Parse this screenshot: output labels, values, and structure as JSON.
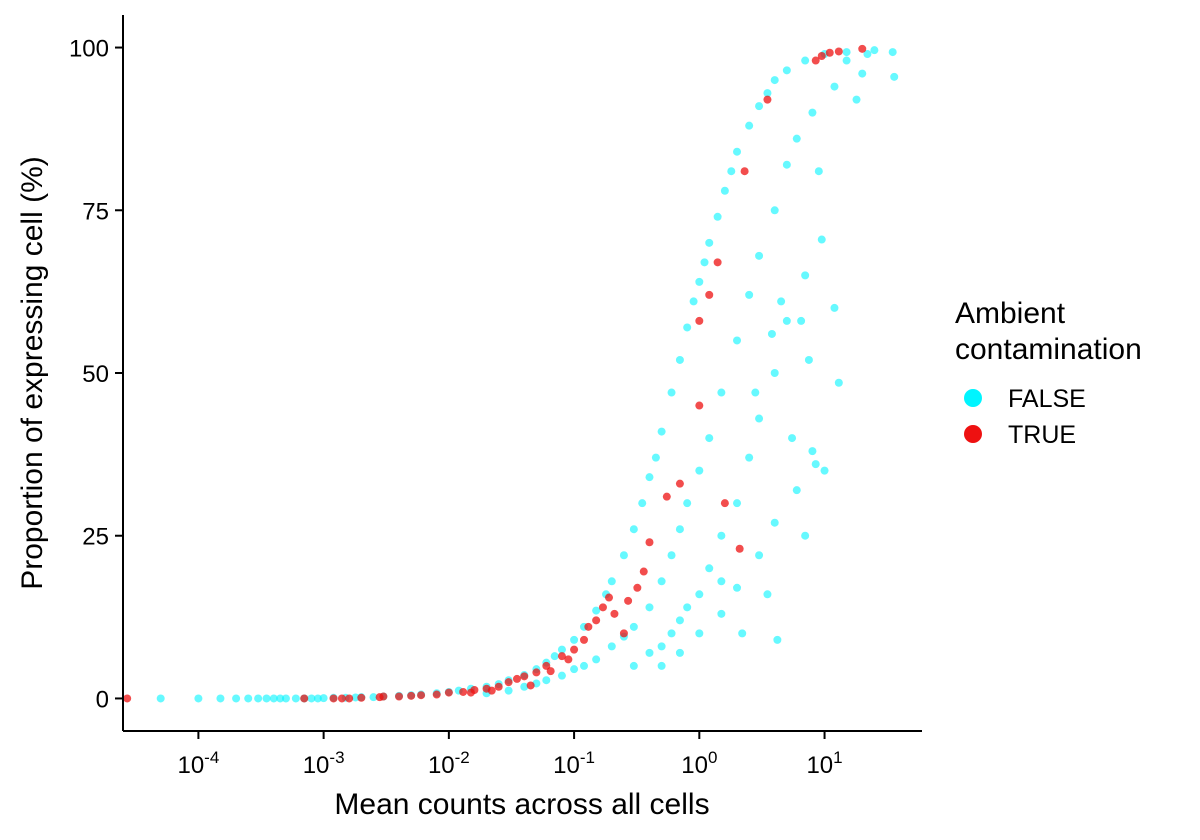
{
  "chart_data": {
    "type": "scatter",
    "title": "",
    "xlabel": "Mean counts across all cells",
    "ylabel": "Proportion of expressing cell (%)",
    "x_scale": "log10",
    "xlim": [
      2.5e-05,
      60
    ],
    "ylim": [
      -5,
      105
    ],
    "x_ticks": [
      {
        "value": 0.0001,
        "base": "10",
        "exp": "-4"
      },
      {
        "value": 0.001,
        "base": "10",
        "exp": "-3"
      },
      {
        "value": 0.01,
        "base": "10",
        "exp": "-2"
      },
      {
        "value": 0.1,
        "base": "10",
        "exp": "-1"
      },
      {
        "value": 1,
        "base": "10",
        "exp": "0"
      },
      {
        "value": 10,
        "base": "10",
        "exp": "1"
      }
    ],
    "y_ticks": [
      {
        "value": 0,
        "label": "0"
      },
      {
        "value": 25,
        "label": "25"
      },
      {
        "value": 50,
        "label": "50"
      },
      {
        "value": 75,
        "label": "75"
      },
      {
        "value": 100,
        "label": "100"
      }
    ],
    "grid": false,
    "legend": {
      "title_lines": [
        "Ambient",
        "contamination"
      ],
      "position": "right",
      "entries": [
        {
          "label": "FALSE",
          "color": "#00f5ff"
        },
        {
          "label": "TRUE",
          "color": "#ee1111"
        }
      ]
    },
    "series": [
      {
        "name": "FALSE",
        "color": "#00f5ff",
        "points": [
          [
            5e-05,
            0
          ],
          [
            0.0001,
            0
          ],
          [
            0.00015,
            0
          ],
          [
            0.0002,
            0
          ],
          [
            0.00025,
            0
          ],
          [
            0.0003,
            0
          ],
          [
            0.00035,
            0
          ],
          [
            0.0004,
            0
          ],
          [
            0.00045,
            0
          ],
          [
            0.0005,
            0
          ],
          [
            0.0006,
            0
          ],
          [
            0.0007,
            0
          ],
          [
            0.0008,
            0
          ],
          [
            0.0009,
            0
          ],
          [
            0.001,
            0.05
          ],
          [
            0.0012,
            0.1
          ],
          [
            0.0015,
            0.1
          ],
          [
            0.0018,
            0.15
          ],
          [
            0.002,
            0.2
          ],
          [
            0.0025,
            0.2
          ],
          [
            0.003,
            0.3
          ],
          [
            0.004,
            0.4
          ],
          [
            0.005,
            0.5
          ],
          [
            0.006,
            0.6
          ],
          [
            0.008,
            0.8
          ],
          [
            0.01,
            1.0
          ],
          [
            0.012,
            1.2
          ],
          [
            0.015,
            1.5
          ],
          [
            0.02,
            1.8
          ],
          [
            0.025,
            2.2
          ],
          [
            0.03,
            2.8
          ],
          [
            0.04,
            3.6
          ],
          [
            0.05,
            4.5
          ],
          [
            0.06,
            5.5
          ],
          [
            0.07,
            6.5
          ],
          [
            0.08,
            7.5
          ],
          [
            0.1,
            9
          ],
          [
            0.12,
            11
          ],
          [
            0.15,
            13.5
          ],
          [
            0.18,
            16
          ],
          [
            0.2,
            18
          ],
          [
            0.25,
            22
          ],
          [
            0.3,
            26
          ],
          [
            0.35,
            30
          ],
          [
            0.4,
            34
          ],
          [
            0.45,
            37
          ],
          [
            0.5,
            41
          ],
          [
            0.6,
            47
          ],
          [
            0.7,
            52
          ],
          [
            0.8,
            57
          ],
          [
            0.9,
            61
          ],
          [
            1.0,
            64
          ],
          [
            1.1,
            67
          ],
          [
            1.2,
            70
          ],
          [
            1.4,
            74
          ],
          [
            1.6,
            78
          ],
          [
            1.8,
            81
          ],
          [
            2.0,
            84
          ],
          [
            2.5,
            88
          ],
          [
            3.0,
            91
          ],
          [
            3.5,
            93
          ],
          [
            4.0,
            95
          ],
          [
            5.0,
            96.5
          ],
          [
            7.0,
            98
          ],
          [
            10,
            99
          ],
          [
            15,
            99.3
          ],
          [
            25,
            99.6
          ],
          [
            35,
            99.3
          ],
          [
            0.02,
            0.8
          ],
          [
            0.03,
            1.2
          ],
          [
            0.04,
            1.8
          ],
          [
            0.05,
            2.3
          ],
          [
            0.06,
            2.8
          ],
          [
            0.08,
            3.5
          ],
          [
            0.1,
            4.5
          ],
          [
            0.12,
            5
          ],
          [
            0.15,
            6
          ],
          [
            0.2,
            8
          ],
          [
            0.25,
            9.5
          ],
          [
            0.3,
            11
          ],
          [
            0.4,
            14
          ],
          [
            0.5,
            18
          ],
          [
            0.6,
            22
          ],
          [
            0.7,
            26
          ],
          [
            0.8,
            30
          ],
          [
            1.0,
            35
          ],
          [
            1.2,
            40
          ],
          [
            1.5,
            47
          ],
          [
            2.0,
            55
          ],
          [
            2.5,
            62
          ],
          [
            3.0,
            68
          ],
          [
            4.0,
            75
          ],
          [
            5.0,
            82
          ],
          [
            6.0,
            86
          ],
          [
            8.0,
            90
          ],
          [
            12,
            94
          ],
          [
            0.3,
            5
          ],
          [
            0.4,
            7
          ],
          [
            0.5,
            8
          ],
          [
            0.6,
            10
          ],
          [
            0.7,
            12
          ],
          [
            0.8,
            14
          ],
          [
            1.0,
            16
          ],
          [
            1.2,
            20
          ],
          [
            1.5,
            25
          ],
          [
            2.0,
            30
          ],
          [
            2.5,
            37
          ],
          [
            3.0,
            43
          ],
          [
            4.0,
            50
          ],
          [
            5.0,
            58
          ],
          [
            7.0,
            65
          ],
          [
            0.5,
            5
          ],
          [
            0.7,
            7
          ],
          [
            1.0,
            10
          ],
          [
            1.5,
            13
          ],
          [
            2.0,
            17
          ],
          [
            3.0,
            22
          ],
          [
            4.0,
            27
          ],
          [
            6.0,
            32
          ],
          [
            8.0,
            38
          ],
          [
            10,
            35
          ],
          [
            13,
            48.5
          ],
          [
            7.5,
            52
          ],
          [
            9.5,
            70.5
          ],
          [
            7,
            25
          ],
          [
            4.2,
            9
          ],
          [
            2.2,
            10
          ],
          [
            1.5,
            18
          ],
          [
            3.5,
            16
          ],
          [
            5.5,
            40
          ],
          [
            8.5,
            36
          ],
          [
            12,
            60
          ],
          [
            18,
            92
          ],
          [
            20,
            96
          ],
          [
            36,
            95.5
          ],
          [
            6.5,
            58
          ],
          [
            4.5,
            61
          ],
          [
            3.8,
            56
          ],
          [
            2.8,
            47
          ],
          [
            9,
            81
          ],
          [
            15,
            98
          ],
          [
            22,
            99
          ]
        ]
      },
      {
        "name": "TRUE",
        "color": "#ee1111",
        "points": [
          [
            2.7e-05,
            0
          ],
          [
            0.0007,
            0
          ],
          [
            0.0012,
            0
          ],
          [
            0.0014,
            0
          ],
          [
            0.0016,
            0
          ],
          [
            0.002,
            0.1
          ],
          [
            0.0028,
            0.2
          ],
          [
            0.003,
            0.3
          ],
          [
            0.004,
            0.3
          ],
          [
            0.005,
            0.4
          ],
          [
            0.006,
            0.5
          ],
          [
            0.008,
            0.6
          ],
          [
            0.01,
            0.9
          ],
          [
            0.013,
            1.0
          ],
          [
            0.016,
            1.3
          ],
          [
            0.02,
            1.5
          ],
          [
            0.025,
            1.8
          ],
          [
            0.03,
            2.5
          ],
          [
            0.035,
            3.0
          ],
          [
            0.04,
            3.4
          ],
          [
            0.05,
            4.0
          ],
          [
            0.06,
            5.0
          ],
          [
            0.08,
            6.5
          ],
          [
            0.1,
            7.5
          ],
          [
            0.12,
            9
          ],
          [
            0.13,
            11
          ],
          [
            0.15,
            12
          ],
          [
            0.17,
            14
          ],
          [
            0.19,
            15.5
          ],
          [
            0.21,
            13
          ],
          [
            0.25,
            10
          ],
          [
            0.27,
            15
          ],
          [
            0.32,
            17
          ],
          [
            0.36,
            19.5
          ],
          [
            0.4,
            24
          ],
          [
            0.55,
            31
          ],
          [
            0.7,
            33
          ],
          [
            1.0,
            45
          ],
          [
            1.2,
            62
          ],
          [
            1.4,
            67
          ],
          [
            1.0,
            58
          ],
          [
            2.1,
            23
          ],
          [
            1.6,
            30
          ],
          [
            2.3,
            81
          ],
          [
            3.5,
            92
          ],
          [
            8.5,
            98
          ],
          [
            9.5,
            98.7
          ],
          [
            11,
            99.2
          ],
          [
            13,
            99.4
          ],
          [
            20,
            99.8
          ],
          [
            0.045,
            2.0
          ],
          [
            0.065,
            4.2
          ],
          [
            0.09,
            6.0
          ],
          [
            0.022,
            1.2
          ],
          [
            0.015,
            0.9
          ]
        ]
      }
    ]
  }
}
